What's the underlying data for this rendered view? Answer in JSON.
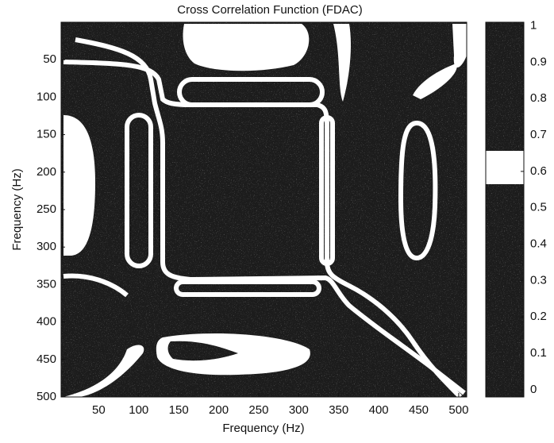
{
  "chart_data": {
    "type": "heatmap",
    "title": "Cross Correlation Function (FDAC)",
    "x_label": "Frequency (Hz)",
    "y_label": "Frequency (Hz)",
    "xlim": [
      3,
      510
    ],
    "xticks": [
      50,
      100,
      150,
      200,
      250,
      300,
      350,
      400,
      450,
      500
    ],
    "ylim": [
      0,
      500
    ],
    "yticks": [
      50,
      100,
      150,
      200,
      250,
      300,
      350,
      400,
      450,
      500
    ],
    "y_inverted": true,
    "colorbar": {
      "ylim": [
        -0.02,
        1.01
      ],
      "yticks": [
        1,
        0.9,
        0.8,
        0.7,
        0.6,
        0.5,
        0.4,
        0.3,
        0.2,
        0.1,
        0
      ]
    }
  }
}
